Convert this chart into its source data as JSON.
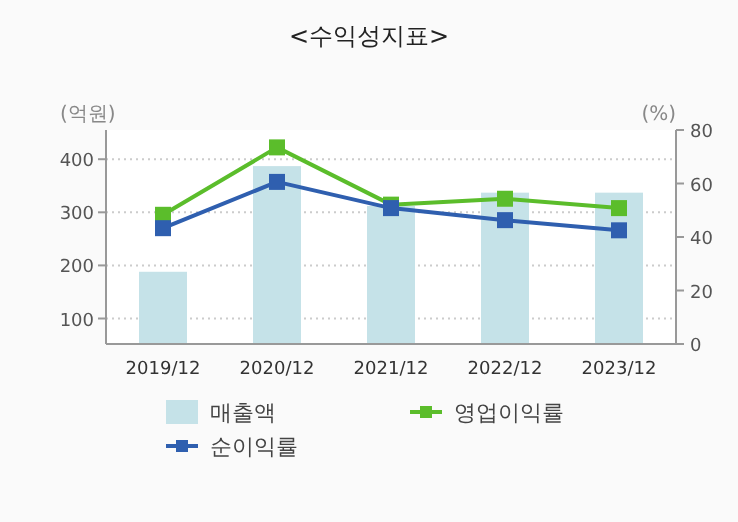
{
  "chart_data": {
    "type": "bar",
    "title": "<수익성지표>",
    "ylabel": "(억원)",
    "y2label": "(%)",
    "categories": [
      "2019/12",
      "2020/12",
      "2021/12",
      "2022/12",
      "2023/12"
    ],
    "series": [
      {
        "name": "매출액",
        "color": "#c5e2e8",
        "values": [
          188,
          387,
          312,
          337,
          337
        ]
      },
      {
        "name": "영업이익률",
        "type": "line",
        "axis": "y2",
        "color": "#5bbd2b",
        "values": [
          48.3,
          73.5,
          52.1,
          54.3,
          50.8
        ]
      },
      {
        "name": "순이익률",
        "type": "line",
        "axis": "y2",
        "color": "#2f5faf",
        "values": [
          43.3,
          60.6,
          50.8,
          46.3,
          42.5
        ]
      }
    ],
    "ylim": [
      52,
      455
    ],
    "yticks": [
      100,
      200,
      300,
      400
    ],
    "y2lim": [
      0,
      80
    ],
    "y2ticks": [
      0,
      20,
      40,
      60,
      80
    ],
    "grid": "y",
    "legend": "bottom",
    "marker": "square"
  }
}
